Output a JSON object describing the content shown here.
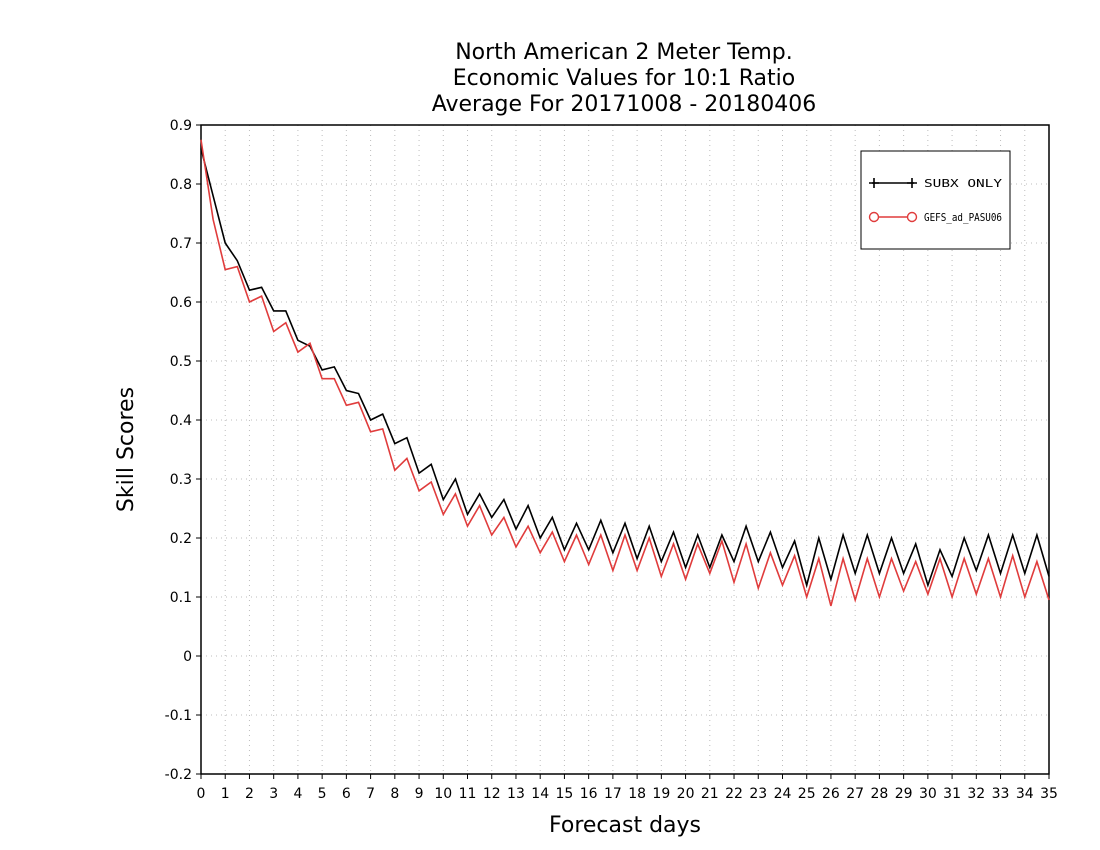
{
  "chart_data": {
    "type": "line",
    "title": [
      "North American 2 Meter Temp.",
      "Economic Values for 10:1 Ratio",
      "Average For 20171008 - 20180406"
    ],
    "xlabel": "Forecast days",
    "ylabel": "Skill Scores",
    "xlim": [
      0,
      35
    ],
    "ylim": [
      -0.2,
      0.9
    ],
    "x_ticks": [
      0,
      1,
      2,
      3,
      4,
      5,
      6,
      7,
      8,
      9,
      10,
      11,
      12,
      13,
      14,
      15,
      16,
      17,
      18,
      19,
      20,
      21,
      22,
      23,
      24,
      25,
      26,
      27,
      28,
      29,
      30,
      31,
      32,
      33,
      34,
      35
    ],
    "y_ticks": [
      -0.2,
      -0.1,
      0,
      0.1,
      0.2,
      0.3,
      0.4,
      0.5,
      0.6,
      0.7,
      0.8,
      0.9
    ],
    "y_tick_labels": [
      "-0.2",
      "-0.1",
      "0",
      "0.1",
      "0.2",
      "0.3",
      "0.4",
      "0.5",
      "0.6",
      "0.7",
      "0.8",
      "0.9"
    ],
    "grid": true,
    "legend_position": "top-right",
    "series": [
      {
        "name": "SUBX ONLY",
        "color": "#000000",
        "marker": "plus",
        "x": [
          0,
          0.5,
          1,
          1.5,
          2,
          2.5,
          3,
          3.5,
          4,
          4.5,
          5,
          5.5,
          6,
          6.5,
          7,
          7.5,
          8,
          8.5,
          9,
          9.5,
          10,
          10.5,
          11,
          11.5,
          12,
          12.5,
          13,
          13.5,
          14,
          14.5,
          15,
          15.5,
          16,
          16.5,
          17,
          17.5,
          18,
          18.5,
          19,
          19.5,
          20,
          20.5,
          21,
          21.5,
          22,
          22.5,
          23,
          23.5,
          24,
          24.5,
          25,
          25.5,
          26,
          26.5,
          27,
          27.5,
          28,
          28.5,
          29,
          29.5,
          30,
          30.5,
          31,
          31.5,
          32,
          32.5,
          33,
          33.5,
          34,
          34.5,
          35
        ],
        "values": [
          0.86,
          0.78,
          0.7,
          0.67,
          0.62,
          0.625,
          0.585,
          0.585,
          0.535,
          0.525,
          0.485,
          0.49,
          0.45,
          0.445,
          0.4,
          0.41,
          0.36,
          0.37,
          0.31,
          0.325,
          0.265,
          0.3,
          0.24,
          0.275,
          0.235,
          0.265,
          0.215,
          0.255,
          0.2,
          0.235,
          0.18,
          0.225,
          0.18,
          0.23,
          0.175,
          0.225,
          0.165,
          0.22,
          0.16,
          0.21,
          0.15,
          0.205,
          0.15,
          0.205,
          0.16,
          0.22,
          0.16,
          0.21,
          0.15,
          0.195,
          0.12,
          0.2,
          0.13,
          0.205,
          0.14,
          0.205,
          0.14,
          0.2,
          0.14,
          0.19,
          0.12,
          0.18,
          0.135,
          0.2,
          0.145,
          0.205,
          0.14,
          0.205,
          0.14,
          0.205,
          0.135
        ]
      },
      {
        "name": "GEFS_ad_PASU06",
        "color": "#e03c3c",
        "marker": "circle",
        "x": [
          0,
          0.5,
          1,
          1.5,
          2,
          2.5,
          3,
          3.5,
          4,
          4.5,
          5,
          5.5,
          6,
          6.5,
          7,
          7.5,
          8,
          8.5,
          9,
          9.5,
          10,
          10.5,
          11,
          11.5,
          12,
          12.5,
          13,
          13.5,
          14,
          14.5,
          15,
          15.5,
          16,
          16.5,
          17,
          17.5,
          18,
          18.5,
          19,
          19.5,
          20,
          20.5,
          21,
          21.5,
          22,
          22.5,
          23,
          23.5,
          24,
          24.5,
          25,
          25.5,
          26,
          26.5,
          27,
          27.5,
          28,
          28.5,
          29,
          29.5,
          30,
          30.5,
          31,
          31.5,
          32,
          32.5,
          33,
          33.5,
          34,
          34.5,
          35
        ],
        "values": [
          0.875,
          0.74,
          0.655,
          0.66,
          0.6,
          0.61,
          0.55,
          0.565,
          0.515,
          0.53,
          0.47,
          0.47,
          0.425,
          0.43,
          0.38,
          0.385,
          0.315,
          0.335,
          0.28,
          0.295,
          0.24,
          0.275,
          0.22,
          0.255,
          0.205,
          0.235,
          0.185,
          0.22,
          0.175,
          0.21,
          0.16,
          0.205,
          0.155,
          0.205,
          0.145,
          0.205,
          0.145,
          0.2,
          0.135,
          0.19,
          0.13,
          0.19,
          0.14,
          0.195,
          0.125,
          0.19,
          0.115,
          0.175,
          0.12,
          0.17,
          0.1,
          0.165,
          0.085,
          0.165,
          0.095,
          0.165,
          0.1,
          0.165,
          0.11,
          0.16,
          0.105,
          0.165,
          0.1,
          0.165,
          0.105,
          0.165,
          0.1,
          0.17,
          0.1,
          0.16,
          0.095
        ]
      }
    ]
  }
}
